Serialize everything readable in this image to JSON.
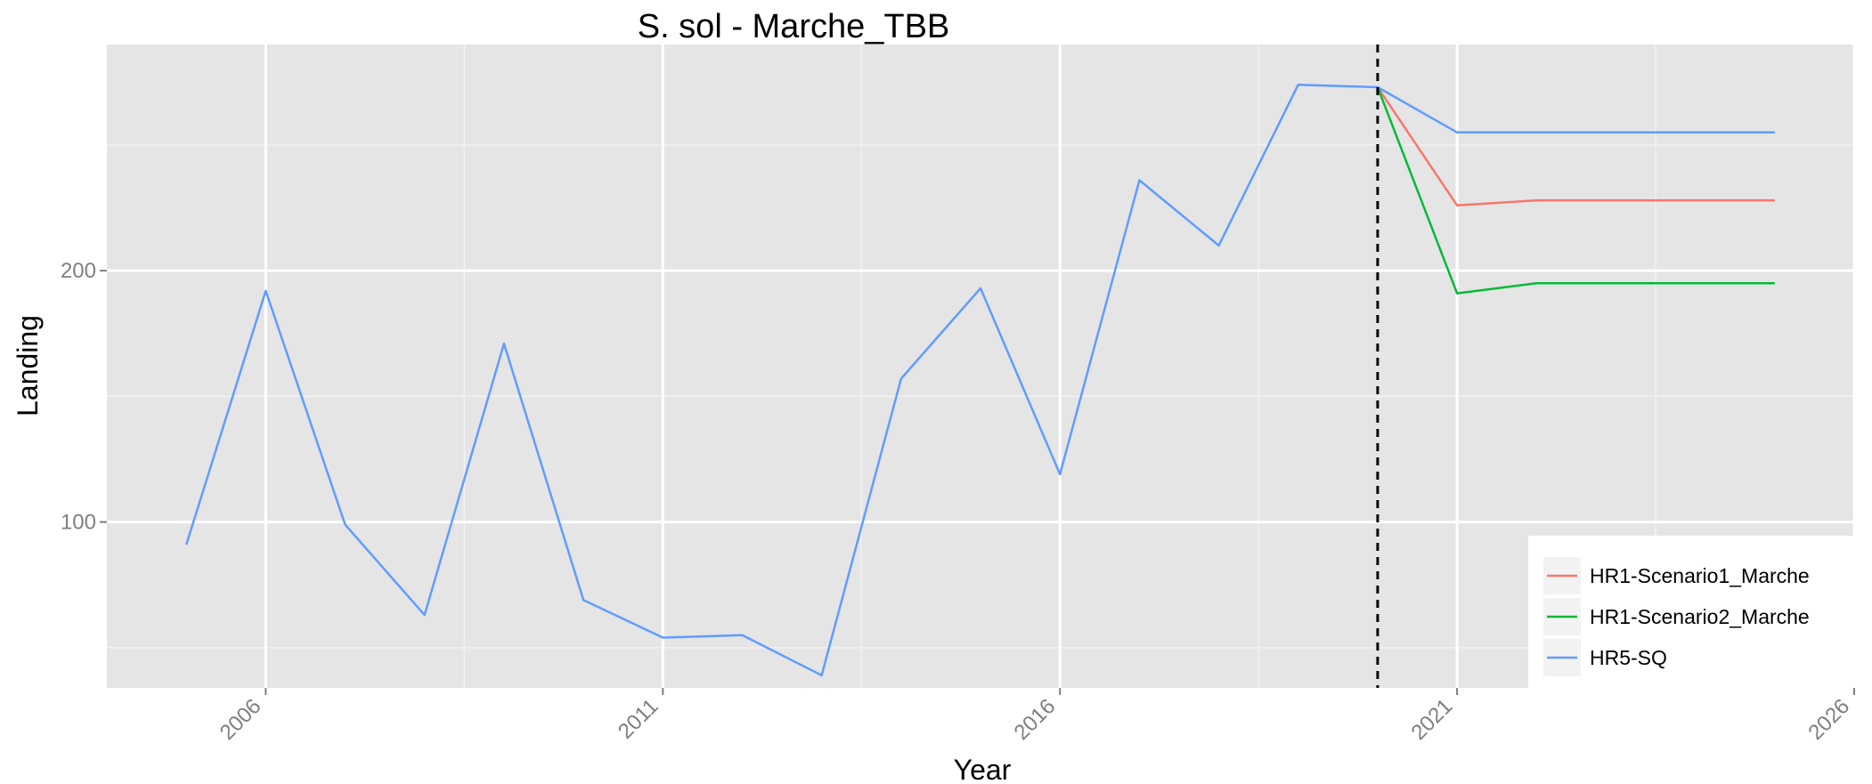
{
  "chart_data": {
    "type": "line",
    "title": "S. sol  -  Marche_TBB",
    "xlabel": "Year",
    "ylabel": "Landing",
    "xlim": [
      2004,
      2026
    ],
    "ylim": [
      34,
      290
    ],
    "x_ticks": [
      2006,
      2011,
      2016,
      2021,
      2026
    ],
    "x_tick_labels": [
      "2006",
      "2011",
      "2016",
      "2021",
      "2026"
    ],
    "y_ticks": [
      100,
      200
    ],
    "y_tick_labels": [
      "100",
      "200"
    ],
    "grid": true,
    "legend_position": "bottom-right",
    "vertical_reference_line": {
      "x": 2020,
      "style": "dashed",
      "color": "#000000"
    },
    "series": [
      {
        "name": "HR1-Scenario1_Marche",
        "color": "#F8766D",
        "x": [
          2020,
          2021,
          2022,
          2023,
          2024,
          2025
        ],
        "values": [
          273,
          226,
          228,
          228,
          228,
          228
        ]
      },
      {
        "name": "HR1-Scenario2_Marche",
        "color": "#00BA38",
        "x": [
          2020,
          2021,
          2022,
          2023,
          2024,
          2025
        ],
        "values": [
          273,
          191,
          195,
          195,
          195,
          195
        ]
      },
      {
        "name": "HR5-SQ",
        "color": "#619CFF",
        "x": [
          2005,
          2006,
          2007,
          2008,
          2009,
          2010,
          2011,
          2012,
          2013,
          2014,
          2015,
          2016,
          2017,
          2018,
          2019,
          2020,
          2021,
          2022,
          2023,
          2024,
          2025
        ],
        "values": [
          91,
          192,
          99,
          63,
          171,
          69,
          54,
          55,
          39,
          157,
          193,
          119,
          236,
          210,
          274,
          273,
          255,
          255,
          255,
          255,
          255
        ]
      }
    ]
  }
}
